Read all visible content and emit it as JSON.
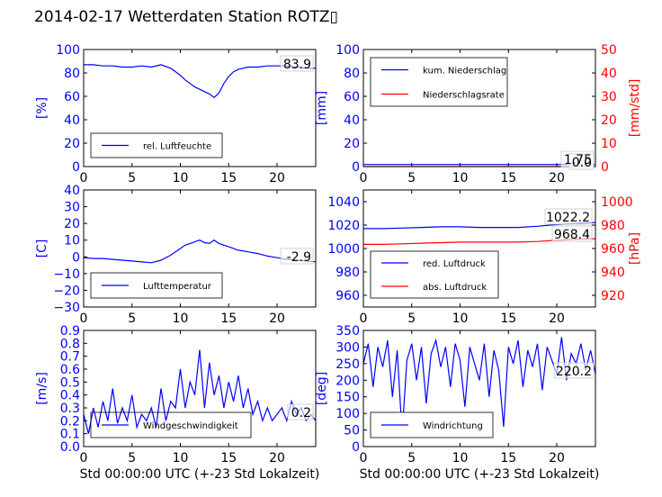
{
  "page": {
    "title": "2014-02-17 Wetterdaten Station ROTZ▯"
  },
  "colors": {
    "left_axis": "#0000ff",
    "right_axis": "#ff0000",
    "series_blue": "#0000ff",
    "series_red": "#ff0000"
  },
  "chart_data": [
    {
      "type": "line",
      "id": "humidity",
      "ylabel": "[%]",
      "xlim": [
        0,
        24
      ],
      "ylim": [
        0,
        100
      ],
      "xticks": [
        0,
        5,
        10,
        15,
        20
      ],
      "yticks": [
        0,
        20,
        40,
        60,
        80,
        100
      ],
      "legend": {
        "placement": "lower-left",
        "entries": [
          "rel. Luftfeuchte"
        ]
      },
      "annotations": [
        "83.9"
      ],
      "series": [
        {
          "name": "rel. Luftfeuchte",
          "axis": "left",
          "color": "#0000ff",
          "x": [
            0,
            1,
            2,
            3,
            4,
            5,
            6,
            7,
            8,
            9,
            10,
            10.5,
            11,
            11.5,
            12,
            12.5,
            13,
            13.5,
            14,
            14.5,
            15,
            15.5,
            16,
            17,
            18,
            19,
            20,
            21,
            22,
            23,
            24
          ],
          "y": [
            87,
            87,
            86,
            86,
            85,
            85,
            86,
            85,
            87,
            84,
            78,
            74,
            71,
            68,
            66,
            64,
            62,
            59,
            63,
            71,
            77,
            81,
            83,
            85,
            85,
            86,
            86,
            86,
            85,
            84,
            84
          ]
        }
      ]
    },
    {
      "type": "line",
      "id": "precipitation",
      "ylabel": "[mm]",
      "ylabel_right": "[mm/std]",
      "xlim": [
        0,
        24
      ],
      "ylim": [
        0,
        100
      ],
      "ylim_right": [
        0,
        50
      ],
      "xticks": [
        0,
        5,
        10,
        15,
        20
      ],
      "yticks": [
        0,
        20,
        40,
        60,
        80,
        100
      ],
      "yticks_right": [
        0,
        10,
        20,
        30,
        40,
        50
      ],
      "legend": {
        "placement": "top-left",
        "entries": [
          "kum. Niederschlag",
          "Niederschlagsrate"
        ]
      },
      "annotations": [
        "1.75",
        "0.0"
      ],
      "series": [
        {
          "name": "kum. Niederschlag",
          "axis": "left",
          "color": "#0000ff",
          "x": [
            0,
            24
          ],
          "y": [
            1.75,
            1.75
          ]
        },
        {
          "name": "Niederschlagsrate",
          "axis": "right",
          "color": "#ff0000",
          "x": [
            0,
            24
          ],
          "y": [
            0,
            0
          ]
        }
      ]
    },
    {
      "type": "line",
      "id": "temperature",
      "ylabel": "[C]",
      "xlim": [
        0,
        24
      ],
      "ylim": [
        -30,
        40
      ],
      "xticks": [
        0,
        5,
        10,
        15,
        20
      ],
      "yticks": [
        -30,
        -20,
        -10,
        0,
        10,
        20,
        30,
        40
      ],
      "legend": {
        "placement": "lower-left",
        "entries": [
          "Lufttemperatur"
        ]
      },
      "annotations": [
        "-2.9"
      ],
      "series": [
        {
          "name": "Lufttemperatur",
          "axis": "left",
          "color": "#0000ff",
          "x": [
            0,
            1,
            2,
            3,
            4,
            5,
            6,
            7,
            8,
            9,
            10,
            10.5,
            11,
            11.5,
            12,
            12.5,
            13,
            13.5,
            14,
            15,
            16,
            17,
            18,
            19,
            20,
            21,
            22,
            23,
            24
          ],
          "y": [
            -0.5,
            -1,
            -1,
            -1.5,
            -2,
            -2.5,
            -3,
            -3.5,
            -2,
            1,
            5,
            7,
            8,
            9,
            10,
            8.5,
            8,
            10,
            8,
            6,
            4,
            3,
            2,
            0.5,
            -0.5,
            -1.5,
            -2,
            -2.5,
            -2.9
          ]
        }
      ]
    },
    {
      "type": "line",
      "id": "pressure",
      "ylabel_right": "[hPa]",
      "xlim": [
        0,
        24
      ],
      "ylim": [
        950,
        1050
      ],
      "ylim_right": [
        910,
        1010
      ],
      "xticks": [
        0,
        5,
        10,
        15,
        20
      ],
      "yticks": [
        960,
        980,
        1000,
        1020,
        1040
      ],
      "yticks_right": [
        920,
        940,
        960,
        980,
        1000
      ],
      "legend": {
        "placement": "lower-left",
        "entries": [
          "red. Luftdruck",
          "abs. Luftdruck"
        ]
      },
      "annotations": [
        "1022.2",
        "968.4"
      ],
      "series": [
        {
          "name": "red. Luftdruck",
          "axis": "left",
          "color": "#0000ff",
          "x": [
            0,
            2,
            4,
            6,
            8,
            10,
            12,
            14,
            16,
            18,
            20,
            22,
            24
          ],
          "y": [
            1017,
            1017,
            1017.5,
            1018,
            1018.5,
            1018.5,
            1018,
            1018,
            1018,
            1019,
            1020.5,
            1021.5,
            1022.2
          ]
        },
        {
          "name": "abs. Luftdruck",
          "axis": "right",
          "color": "#ff0000",
          "x": [
            0,
            2,
            4,
            6,
            8,
            10,
            12,
            14,
            16,
            18,
            20,
            22,
            24
          ],
          "y": [
            963.5,
            963.5,
            964,
            964.5,
            965,
            965.5,
            965.5,
            965.5,
            965.5,
            966,
            967,
            968,
            968.4
          ]
        }
      ]
    },
    {
      "type": "line",
      "id": "windspeed",
      "ylabel": "[m/s]",
      "xlabel": "Std 00:00:00 UTC (+-23 Std Lokalzeit)",
      "xlim": [
        0,
        24
      ],
      "ylim": [
        0,
        0.9
      ],
      "xticks": [
        0,
        5,
        10,
        15,
        20
      ],
      "yticks": [
        0.0,
        0.1,
        0.2,
        0.3,
        0.4,
        0.5,
        0.6,
        0.7,
        0.8,
        0.9
      ],
      "legend": {
        "placement": "lower-left",
        "entries": [
          "Windgeschwindigkeit"
        ]
      },
      "annotations": [
        "0.2"
      ],
      "series": [
        {
          "name": "Windgeschwindigkeit",
          "axis": "left",
          "color": "#0000ff",
          "x": [
            0,
            0.5,
            1,
            1.5,
            2,
            2.5,
            3,
            3.5,
            4,
            4.5,
            5,
            5.5,
            6,
            6.5,
            7,
            7.5,
            8,
            8.5,
            9,
            9.5,
            10,
            10.5,
            11,
            11.5,
            12,
            12.5,
            13,
            13.5,
            14,
            14.5,
            15,
            15.5,
            16,
            16.5,
            17,
            17.5,
            18,
            18.5,
            19,
            19.5,
            20,
            20.5,
            21,
            21.5,
            22,
            22.5,
            23,
            23.5,
            24
          ],
          "y": [
            0.25,
            0.1,
            0.3,
            0.15,
            0.35,
            0.2,
            0.45,
            0.18,
            0.3,
            0.2,
            0.4,
            0.15,
            0.25,
            0.2,
            0.3,
            0.15,
            0.45,
            0.2,
            0.35,
            0.3,
            0.6,
            0.3,
            0.5,
            0.4,
            0.75,
            0.3,
            0.65,
            0.4,
            0.55,
            0.3,
            0.5,
            0.35,
            0.55,
            0.3,
            0.45,
            0.25,
            0.35,
            0.2,
            0.3,
            0.2,
            0.25,
            0.3,
            0.2,
            0.35,
            0.25,
            0.3,
            0.2,
            0.25,
            0.2
          ]
        }
      ]
    },
    {
      "type": "line",
      "id": "winddirection",
      "ylabel": "[deg]",
      "xlabel": "Std 00:00:00 UTC (+-23 Std Lokalzeit)",
      "xlim": [
        0,
        24
      ],
      "ylim": [
        0,
        350
      ],
      "xticks": [
        0,
        5,
        10,
        15,
        20
      ],
      "yticks": [
        0,
        50,
        100,
        150,
        200,
        250,
        300,
        350
      ],
      "legend": {
        "placement": "lower-left",
        "entries": [
          "Windrichtung"
        ]
      },
      "annotations": [
        "220.2"
      ],
      "series": [
        {
          "name": "Windrichtung",
          "axis": "left",
          "color": "#0000ff",
          "x": [
            0,
            0.5,
            1,
            1.5,
            2,
            2.5,
            3,
            3.5,
            4,
            4.5,
            5,
            5.5,
            6,
            6.5,
            7,
            7.5,
            8,
            8.5,
            9,
            9.5,
            10,
            10.5,
            11,
            11.5,
            12,
            12.5,
            13,
            13.5,
            14,
            14.5,
            15,
            15.5,
            16,
            16.5,
            17,
            17.5,
            18,
            18.5,
            19,
            19.5,
            20,
            20.5,
            21,
            21.5,
            22,
            22.5,
            23,
            23.5,
            24
          ],
          "y": [
            250,
            310,
            180,
            300,
            240,
            320,
            150,
            290,
            40,
            260,
            310,
            200,
            300,
            130,
            280,
            320,
            240,
            300,
            180,
            310,
            260,
            120,
            300,
            250,
            200,
            310,
            150,
            290,
            230,
            60,
            300,
            250,
            320,
            180,
            290,
            240,
            310,
            170,
            300,
            260,
            220,
            330,
            200,
            280,
            250,
            310,
            230,
            290,
            220
          ]
        }
      ]
    }
  ]
}
